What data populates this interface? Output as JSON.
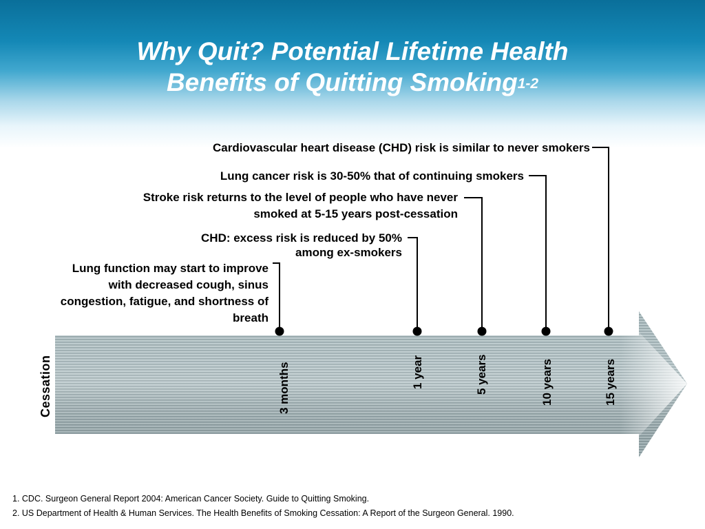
{
  "title": {
    "line1": "Why Quit? Potential Lifetime Health",
    "line2": "Benefits of Quitting Smoking",
    "superscript": "1-2"
  },
  "timeline": {
    "start_label": "Cessation",
    "milestones": [
      {
        "label": "3 months",
        "benefit": [
          "Lung function may start to improve",
          "with decreased cough, sinus",
          "congestion, fatigue, and shortness of",
          "breath"
        ]
      },
      {
        "label": "1 year",
        "benefit": [
          "CHD: excess risk is reduced by 50%",
          "among ex-smokers"
        ]
      },
      {
        "label": "5 years",
        "benefit": [
          "Stroke risk returns to the level of people who have never",
          "smoked at 5-15 years post-cessation"
        ]
      },
      {
        "label": "10 years",
        "benefit": [
          "Lung cancer risk is 30-50% that of continuing smokers"
        ]
      },
      {
        "label": "15 years",
        "benefit": [
          "Cardiovascular heart disease (CHD) risk is similar to never smokers"
        ]
      }
    ]
  },
  "references": [
    "1. CDC. Surgeon General Report 2004: American Cancer Society. Guide to Quitting Smoking.",
    "2. US Department of Health & Human Services. The Health Benefits of Smoking Cessation: A Report of the Surgeon General. 1990."
  ],
  "colors": {
    "header_top": "#0a6f9a",
    "arrow_body": "#aebfc3",
    "arrow_stripe": "#7d9195"
  }
}
